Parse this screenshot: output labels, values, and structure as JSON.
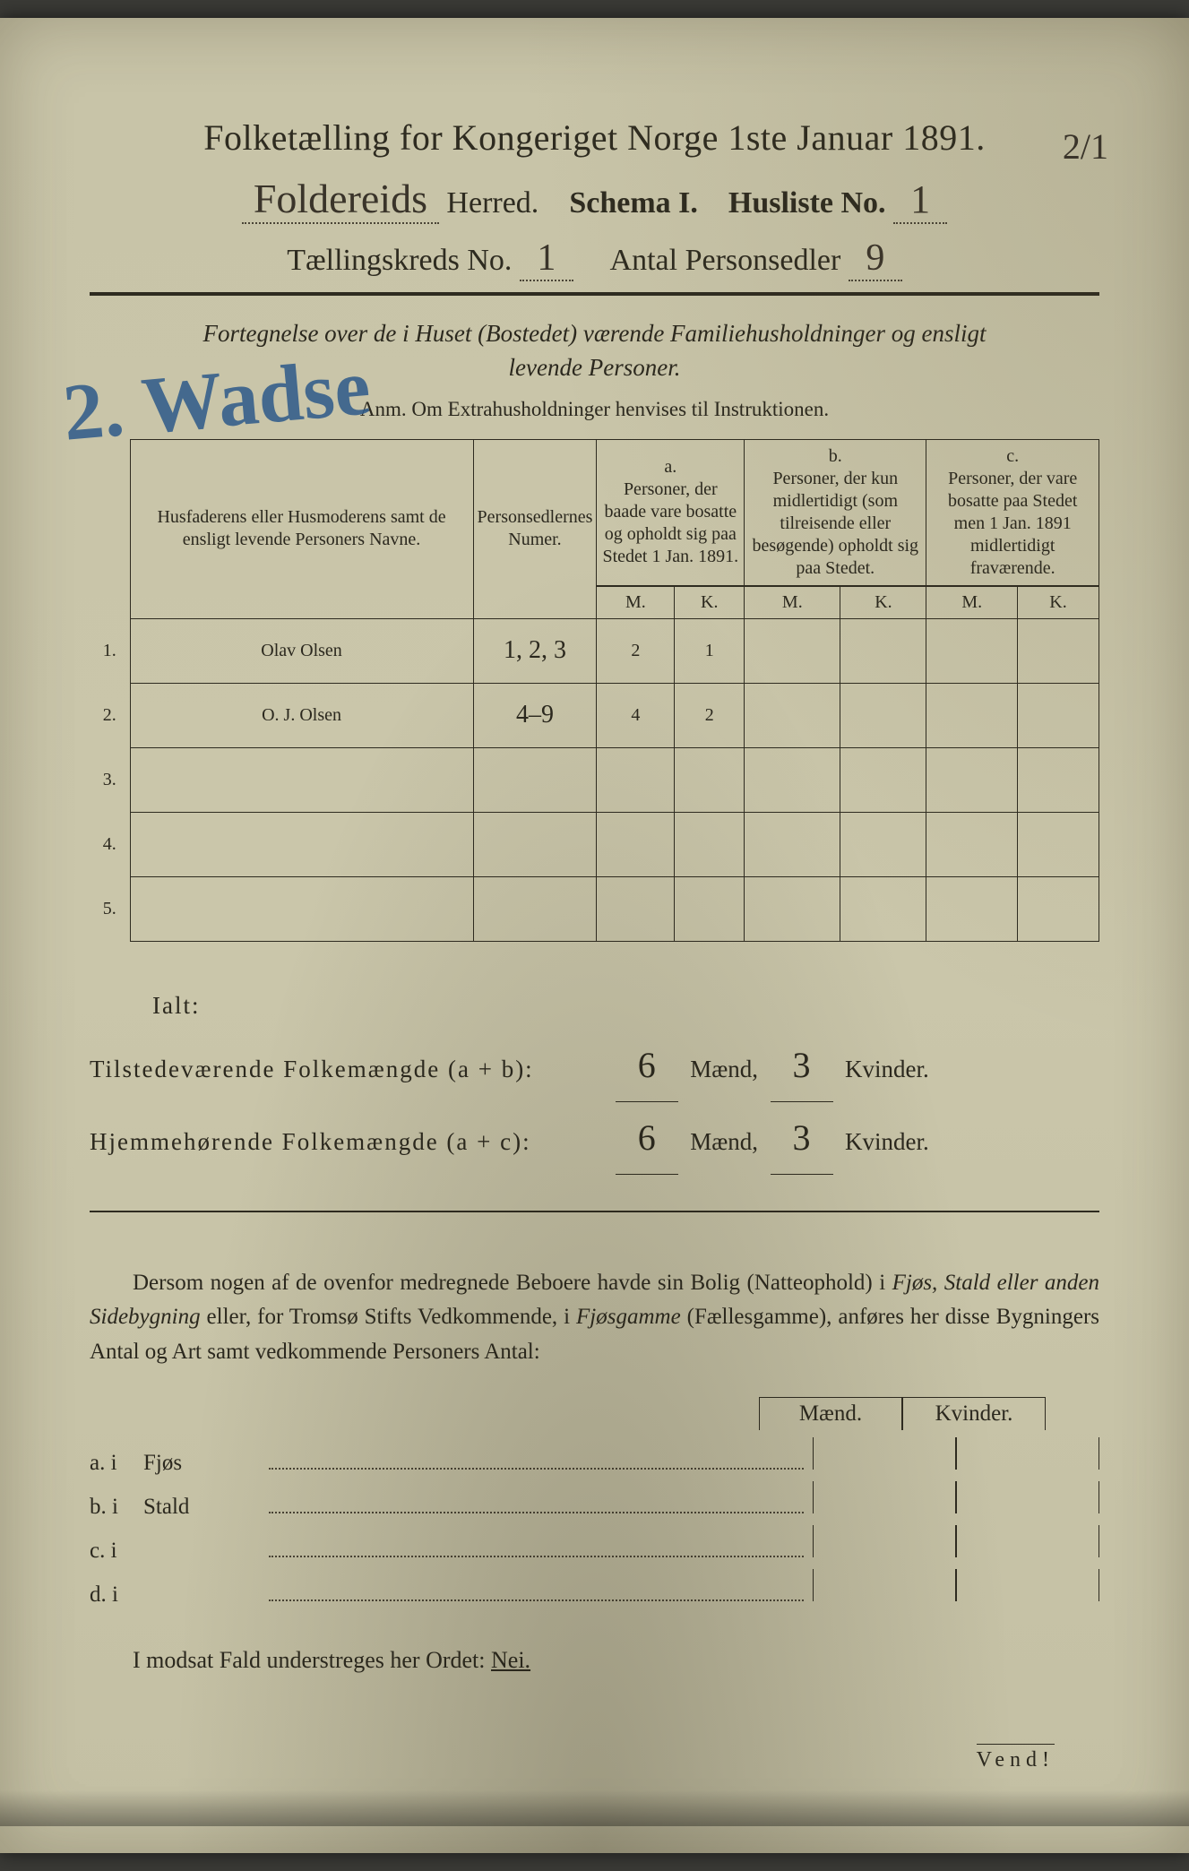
{
  "document": {
    "background_color": "#c8c4a8",
    "ink_color": "#2e2b20",
    "handwriting_color": "#3a342a",
    "blue_pencil_color": "#2d5a8a",
    "title_main": "Folketælling for Kongeriget Norge 1ste Januar 1891.",
    "herred_handwritten": "Foldereids",
    "herred_label": "Herred.",
    "schema_label": "Schema I.",
    "husliste_label": "Husliste No.",
    "husliste_no": "1",
    "kreds_label": "Tællingskreds No.",
    "kreds_no": "1",
    "personsedler_label": "Antal Personsedler",
    "personsedler_no": "9",
    "corner_mark": "2/1",
    "intro_line1": "Fortegnelse over de i Huset (Bostedet) værende Familiehusholdninger og ensligt",
    "intro_line2": "levende Personer.",
    "anm": "Anm. Om Extrahusholdninger henvises til Instruktionen.",
    "blue_overlay": "2. Wadse"
  },
  "table": {
    "col_names_header": "Husfaderens eller Husmoderens samt de ensligt levende Personers Navne.",
    "col_num_header": "Personsedlernes Numer.",
    "col_a_label": "a.",
    "col_a_text": "Personer, der baade vare bosatte og opholdt sig paa Stedet 1 Jan. 1891.",
    "col_b_label": "b.",
    "col_b_text": "Personer, der kun midlertidigt (som tilreisende eller besøgende) opholdt sig paa Stedet.",
    "col_c_label": "c.",
    "col_c_text": "Personer, der vare bosatte paa Stedet men 1 Jan. 1891 midlertidigt fraværende.",
    "m_label": "M.",
    "k_label": "K.",
    "rows": [
      {
        "n": "1.",
        "name": "Olav Olsen",
        "num": "1, 2, 3",
        "a_m": "2",
        "a_k": "1",
        "b_m": "",
        "b_k": "",
        "c_m": "",
        "c_k": ""
      },
      {
        "n": "2.",
        "name": "O. J. Olsen",
        "num": "4–9",
        "a_m": "4",
        "a_k": "2",
        "b_m": "",
        "b_k": "",
        "c_m": "",
        "c_k": ""
      },
      {
        "n": "3.",
        "name": "",
        "num": "",
        "a_m": "",
        "a_k": "",
        "b_m": "",
        "b_k": "",
        "c_m": "",
        "c_k": ""
      },
      {
        "n": "4.",
        "name": "",
        "num": "",
        "a_m": "",
        "a_k": "",
        "b_m": "",
        "b_k": "",
        "c_m": "",
        "c_k": ""
      },
      {
        "n": "5.",
        "name": "",
        "num": "",
        "a_m": "",
        "a_k": "",
        "b_m": "",
        "b_k": "",
        "c_m": "",
        "c_k": ""
      }
    ]
  },
  "totals": {
    "ialt": "Ialt:",
    "line1_label": "Tilstedeværende Folkemængde (a + b):",
    "line2_label": "Hjemmehørende Folkemængde (a + c):",
    "maend": "Mænd,",
    "kvinder": "Kvinder.",
    "l1_m": "6",
    "l1_k": "3",
    "l2_m": "6",
    "l2_k": "3"
  },
  "para": {
    "text1": "Dersom nogen af de ovenfor medregnede Beboere havde sin Bolig (Natteophold) i ",
    "em1": "Fjøs, Stald eller anden Sidebygning",
    "text2": " eller, for Tromsø Stifts Vedkommende, i ",
    "em2": "Fjøsgamme",
    "text3": " (Fællesgamme), anføres her disse Bygningers Antal og Art samt vedkommende Personers Antal:"
  },
  "outbuildings": {
    "maend": "Mænd.",
    "kvinder": "Kvinder.",
    "rows": [
      {
        "lead": "a.  i",
        "label": "Fjøs"
      },
      {
        "lead": "b.  i",
        "label": "Stald"
      },
      {
        "lead": "c.  i",
        "label": ""
      },
      {
        "lead": "d.  i",
        "label": ""
      }
    ]
  },
  "nei_line": {
    "prefix": "I modsat Fald understreges her Ordet: ",
    "word": "Nei."
  },
  "vend": "Vend!"
}
